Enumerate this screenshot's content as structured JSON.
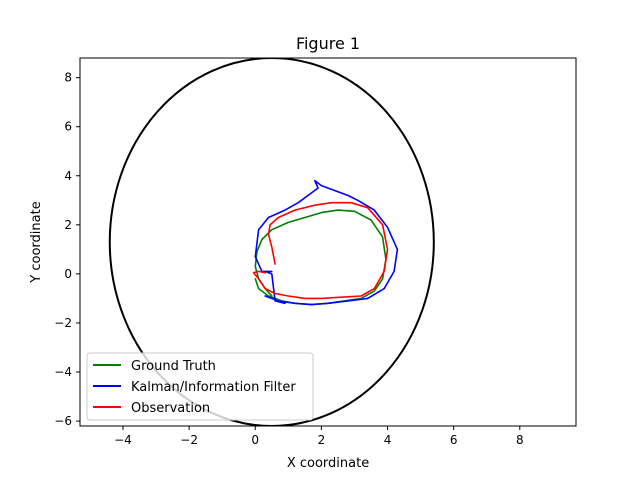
{
  "chart_data": {
    "type": "line",
    "title": "Figure 1",
    "xlabel": "X coordinate",
    "ylabel": "Y coordinate",
    "xlim": [
      -5.3,
      9.7
    ],
    "ylim": [
      -6.2,
      8.8
    ],
    "xticks": [
      -4,
      -2,
      0,
      2,
      4,
      6,
      8
    ],
    "yticks": [
      -6,
      -4,
      -2,
      0,
      2,
      4,
      6,
      8
    ],
    "grid": false,
    "legend": "lower left",
    "series": [
      {
        "name": "Ground Truth",
        "color": "#008000",
        "x": [
          0.5,
          0.3,
          0.1,
          0.0,
          0.05,
          0.2,
          0.5,
          1.0,
          1.5,
          2.0,
          2.5,
          3.0,
          3.5,
          3.85,
          3.95,
          3.85,
          3.6,
          3.2,
          2.7,
          2.2,
          1.7,
          1.2,
          0.8,
          0.4,
          0.1,
          0.0
        ],
        "y": [
          -0.9,
          -0.6,
          -0.2,
          0.3,
          0.9,
          1.4,
          1.8,
          2.1,
          2.3,
          2.5,
          2.6,
          2.55,
          2.2,
          1.5,
          0.6,
          -0.2,
          -0.7,
          -1.0,
          -1.1,
          -1.2,
          -1.25,
          -1.2,
          -1.1,
          -0.9,
          -0.6,
          -0.2
        ]
      },
      {
        "name": "Kalman/Information Filter",
        "color": "#0000ff",
        "x": [
          0.9,
          0.6,
          0.5,
          0.3,
          0.5,
          0.2,
          0.0,
          0.1,
          0.4,
          0.9,
          1.3,
          1.7,
          1.9,
          1.8,
          2.0,
          2.4,
          2.8,
          3.1,
          3.6,
          4.0,
          4.3,
          4.2,
          3.9,
          3.4,
          2.8,
          2.2,
          1.7,
          1.2,
          0.7,
          0.3
        ],
        "y": [
          -1.2,
          -1.1,
          0.0,
          0.1,
          0.1,
          0.1,
          0.7,
          1.8,
          2.3,
          2.6,
          2.9,
          3.3,
          3.5,
          3.8,
          3.6,
          3.4,
          3.2,
          3.0,
          2.6,
          1.9,
          1.0,
          0.1,
          -0.6,
          -1.0,
          -1.1,
          -1.2,
          -1.25,
          -1.2,
          -1.1,
          -0.9
        ]
      },
      {
        "name": "Observation",
        "color": "#ff0000",
        "x": [
          0.6,
          0.5,
          0.4,
          0.45,
          0.7,
          1.2,
          1.8,
          2.3,
          2.9,
          3.4,
          3.85,
          4.0,
          3.9,
          3.6,
          3.2,
          2.6,
          2.0,
          1.5,
          1.0,
          0.6,
          0.3,
          0.2,
          0.1,
          -0.05,
          0.1,
          0.3
        ],
        "y": [
          0.4,
          1.1,
          1.6,
          2.0,
          2.3,
          2.6,
          2.8,
          2.9,
          2.9,
          2.7,
          2.0,
          1.0,
          0.1,
          -0.6,
          -0.9,
          -0.95,
          -1.0,
          -1.0,
          -0.9,
          -0.8,
          -0.6,
          -0.4,
          -0.2,
          0.05,
          0.1,
          0.05
        ]
      }
    ],
    "ellipse": {
      "color": "#000000",
      "center": [
        0.5,
        1.3
      ],
      "semi_axis_x": 4.9,
      "semi_axis_y": 7.5
    }
  }
}
